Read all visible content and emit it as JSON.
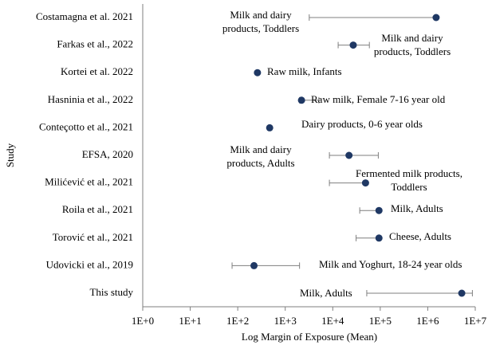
{
  "chart_data": {
    "type": "forest",
    "x_label": "Log Margin of Exposure (Mean)",
    "y_label": "Study",
    "xscale": "log",
    "xlim": [
      1,
      10000000
    ],
    "xticks": [
      {
        "value": 1,
        "label": "1E+0"
      },
      {
        "value": 10,
        "label": "1E+1"
      },
      {
        "value": 100,
        "label": "1E+2"
      },
      {
        "value": 1000,
        "label": "1E+3"
      },
      {
        "value": 10000,
        "label": "1E+4"
      },
      {
        "value": 100000,
        "label": "1E+5"
      },
      {
        "value": 1000000,
        "label": "1E+6"
      },
      {
        "value": 10000000,
        "label": "1E+7"
      }
    ],
    "categories": [
      "Costamagna et al. 2021",
      "Farkas et al., 2022",
      "Kortei et al. 2022",
      "Hasninia et al., 2022",
      "Conteçotto et al., 2021",
      "EFSA, 2020",
      "Milićević et al., 2021",
      "Roila et al., 2021",
      "Torović et al., 2021",
      "Udovicki et al., 2019",
      "This study"
    ],
    "color": "#1f3864",
    "values": [
      1500000,
      27000,
      260,
      2200,
      470,
      22000,
      49000,
      94000,
      94000,
      220,
      5200000
    ],
    "low": [
      3200,
      13000,
      null,
      2000,
      440,
      8500,
      8500,
      37000,
      31000,
      76,
      52000
    ],
    "high": [
      1500000,
      59000,
      null,
      5100,
      500,
      91000,
      49000,
      94000,
      94000,
      2000,
      8700000
    ],
    "annotations": [
      [
        "Milk and dairy",
        "products, Toddlers"
      ],
      [
        "Milk and dairy",
        "products, Toddlers"
      ],
      [
        "Raw milk, Infants"
      ],
      [
        "Raw milk, Female 7-16 year old"
      ],
      [
        "Dairy products, 0-6 year olds"
      ],
      [
        "Milk and dairy",
        "products, Adults"
      ],
      [
        "Fermented milk products,",
        "Toddlers"
      ],
      [
        "Milk, Adults"
      ],
      [
        "Cheese, Adults"
      ],
      [
        "Milk and Yoghurt, 18-24 year olds"
      ],
      [
        "Milk, Adults"
      ]
    ]
  }
}
